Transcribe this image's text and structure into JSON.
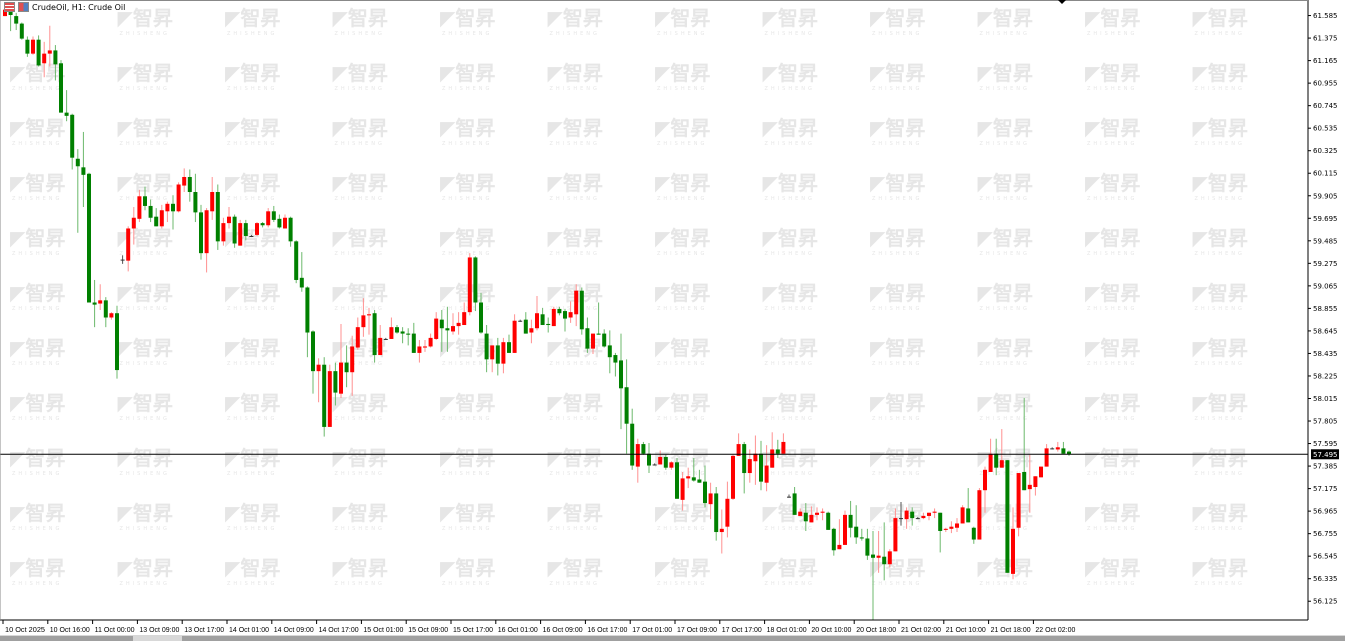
{
  "header": {
    "symbol_title": "CrudeOil, H1:  Crude Oil",
    "icons": [
      "bars-list-icon",
      "chart-type-icon"
    ]
  },
  "watermark": {
    "logo_text": "智昇",
    "sub_text": "ZHISHENG",
    "color": "#e6e6e6"
  },
  "current_price": {
    "label": "57.495",
    "value": 57.495
  },
  "colors": {
    "bull": "#ff0000",
    "bear": "#008000",
    "bull_wick": "#ff9090",
    "bear_wick": "#6cb86c",
    "price_line": "#000000",
    "axis": "#000000"
  },
  "chart_data": {
    "type": "candlestick",
    "title": "",
    "symbol": "CrudeOil",
    "timeframe": "H1",
    "ylim": [
      55.95,
      61.73
    ],
    "grid": false,
    "y_ticks": [
      "61.585",
      "61.375",
      "61.165",
      "60.955",
      "60.745",
      "60.535",
      "60.325",
      "60.115",
      "59.905",
      "59.695",
      "59.485",
      "59.275",
      "59.065",
      "58.855",
      "58.645",
      "58.435",
      "58.225",
      "58.015",
      "57.805",
      "57.595",
      "57.385",
      "57.175",
      "56.965",
      "56.755",
      "56.545",
      "56.335",
      "56.125"
    ],
    "x_labels": [
      "10 Oct 2025",
      "10 Oct 16:00",
      "11 Oct 00:00",
      "13 Oct 09:00",
      "13 Oct 17:00",
      "14 Oct 01:00",
      "14 Oct 09:00",
      "14 Oct 17:00",
      "15 Oct 01:00",
      "15 Oct 09:00",
      "15 Oct 17:00",
      "16 Oct 01:00",
      "16 Oct 09:00",
      "16 Oct 17:00",
      "17 Oct 01:00",
      "17 Oct 09:00",
      "17 Oct 17:00",
      "18 Oct 01:00",
      "20 Oct 10:00",
      "20 Oct 18:00",
      "21 Oct 02:00",
      "21 Oct 10:00",
      "21 Oct 18:00",
      "22 Oct 02:00"
    ],
    "ohlc_fields": [
      "open",
      "high",
      "low",
      "close"
    ],
    "candles": [
      [
        61.58,
        61.64,
        61.58,
        61.64
      ],
      [
        61.63,
        61.64,
        61.44,
        61.59
      ],
      [
        61.58,
        61.61,
        61.45,
        61.51
      ],
      [
        61.51,
        61.52,
        61.36,
        61.37
      ],
      [
        61.36,
        61.39,
        61.2,
        61.23
      ],
      [
        61.23,
        61.39,
        61.22,
        61.36
      ],
      [
        61.36,
        61.4,
        61.11,
        61.12
      ],
      [
        61.14,
        61.34,
        61.01,
        61.23
      ],
      [
        61.23,
        61.49,
        61.11,
        61.26
      ],
      [
        61.26,
        61.31,
        60.98,
        61.13
      ],
      [
        61.14,
        61.17,
        60.68,
        60.68
      ],
      [
        60.68,
        60.89,
        60.6,
        60.65
      ],
      [
        60.66,
        60.67,
        60.15,
        60.26
      ],
      [
        60.25,
        60.34,
        59.56,
        60.18
      ],
      [
        60.17,
        60.5,
        59.8,
        60.1
      ],
      [
        60.11,
        60.12,
        58.91,
        58.91
      ],
      [
        58.91,
        59.12,
        58.68,
        58.89
      ],
      [
        58.9,
        59.08,
        58.84,
        58.93
      ],
      [
        58.93,
        58.96,
        58.68,
        58.77
      ],
      [
        58.77,
        58.82,
        58.75,
        58.81
      ],
      [
        58.81,
        58.88,
        58.2,
        58.28
      ],
      [
        59.31,
        59.35,
        59.27,
        59.31
      ],
      [
        59.3,
        59.62,
        59.2,
        59.6
      ],
      [
        59.6,
        59.8,
        59.45,
        59.7
      ],
      [
        59.69,
        59.96,
        59.66,
        59.9
      ],
      [
        59.9,
        59.99,
        59.77,
        59.81
      ],
      [
        59.81,
        59.87,
        59.66,
        59.7
      ],
      [
        59.71,
        59.79,
        59.62,
        59.62
      ],
      [
        59.62,
        59.82,
        59.6,
        59.77
      ],
      [
        59.76,
        59.85,
        59.66,
        59.83
      ],
      [
        59.83,
        59.91,
        59.59,
        59.76
      ],
      [
        59.76,
        60.03,
        59.75,
        60.01
      ],
      [
        60.0,
        60.16,
        59.94,
        60.08
      ],
      [
        60.08,
        60.15,
        59.85,
        59.94
      ],
      [
        59.94,
        60.11,
        59.66,
        59.75
      ],
      [
        59.75,
        59.82,
        59.31,
        59.37
      ],
      [
        59.37,
        59.79,
        59.19,
        59.77
      ],
      [
        59.76,
        60.08,
        59.68,
        59.94
      ],
      [
        59.94,
        60.01,
        59.4,
        59.48
      ],
      [
        59.48,
        59.7,
        59.44,
        59.65
      ],
      [
        59.65,
        59.8,
        59.6,
        59.71
      ],
      [
        59.71,
        59.73,
        59.42,
        59.46
      ],
      [
        59.44,
        59.68,
        59.44,
        59.65
      ],
      [
        59.65,
        59.68,
        59.49,
        59.53
      ],
      [
        59.53,
        59.54,
        59.52,
        59.53
      ],
      [
        59.54,
        59.66,
        59.53,
        59.65
      ],
      [
        59.65,
        59.66,
        59.61,
        59.63
      ],
      [
        59.63,
        59.79,
        59.61,
        59.76
      ],
      [
        59.76,
        59.81,
        59.66,
        59.68
      ],
      [
        59.69,
        59.73,
        59.6,
        59.61
      ],
      [
        59.6,
        59.73,
        59.6,
        59.7
      ],
      [
        59.7,
        59.71,
        59.43,
        59.48
      ],
      [
        59.48,
        59.49,
        59.09,
        59.12
      ],
      [
        59.14,
        59.38,
        59.01,
        59.05
      ],
      [
        59.05,
        59.06,
        58.4,
        58.63
      ],
      [
        58.64,
        58.65,
        58.06,
        58.27
      ],
      [
        58.27,
        58.39,
        57.98,
        58.33
      ],
      [
        58.33,
        58.4,
        57.66,
        57.75
      ],
      [
        57.75,
        58.33,
        57.75,
        58.27
      ],
      [
        58.27,
        58.35,
        57.95,
        58.07
      ],
      [
        58.06,
        58.71,
        58.02,
        58.35
      ],
      [
        58.35,
        58.51,
        58.12,
        58.26
      ],
      [
        58.26,
        58.6,
        58.04,
        58.5
      ],
      [
        58.49,
        58.77,
        58.47,
        58.68
      ],
      [
        58.68,
        58.95,
        58.59,
        58.79
      ],
      [
        58.79,
        58.86,
        58.61,
        58.8
      ],
      [
        58.81,
        58.84,
        58.35,
        58.42
      ],
      [
        58.42,
        58.7,
        58.42,
        58.58
      ],
      [
        58.57,
        58.58,
        58.56,
        58.57
      ],
      [
        58.57,
        58.77,
        58.57,
        58.68
      ],
      [
        58.68,
        58.7,
        58.62,
        58.63
      ],
      [
        58.64,
        58.68,
        58.53,
        58.62
      ],
      [
        58.62,
        58.67,
        58.51,
        58.61
      ],
      [
        58.62,
        58.72,
        58.44,
        58.44
      ],
      [
        58.44,
        58.56,
        58.35,
        58.5
      ],
      [
        58.49,
        58.56,
        58.45,
        58.5
      ],
      [
        58.5,
        58.62,
        58.49,
        58.58
      ],
      [
        58.57,
        58.82,
        58.56,
        58.76
      ],
      [
        58.75,
        58.84,
        58.45,
        58.67
      ],
      [
        58.67,
        58.87,
        58.45,
        58.65
      ],
      [
        58.64,
        58.81,
        58.61,
        58.69
      ],
      [
        58.69,
        58.82,
        58.61,
        58.72
      ],
      [
        58.7,
        58.91,
        58.7,
        58.82
      ],
      [
        58.82,
        59.37,
        58.79,
        59.33
      ],
      [
        59.33,
        59.34,
        58.83,
        58.91
      ],
      [
        58.91,
        59.0,
        58.62,
        58.63
      ],
      [
        58.62,
        58.7,
        58.26,
        58.38
      ],
      [
        58.38,
        58.51,
        58.26,
        58.51
      ],
      [
        58.51,
        58.58,
        58.23,
        58.34
      ],
      [
        58.34,
        58.58,
        58.25,
        58.54
      ],
      [
        58.54,
        58.61,
        58.44,
        58.44
      ],
      [
        58.44,
        58.8,
        58.44,
        58.74
      ],
      [
        58.74,
        58.75,
        58.73,
        58.74
      ],
      [
        58.75,
        58.82,
        58.62,
        58.62
      ],
      [
        58.63,
        58.75,
        58.53,
        58.67
      ],
      [
        58.67,
        58.97,
        58.65,
        58.81
      ],
      [
        58.8,
        58.86,
        58.7,
        58.7
      ],
      [
        58.71,
        58.77,
        58.63,
        58.7
      ],
      [
        58.69,
        58.87,
        58.69,
        58.85
      ],
      [
        58.85,
        58.87,
        58.79,
        58.81
      ],
      [
        58.83,
        58.85,
        58.64,
        58.76
      ],
      [
        58.77,
        58.92,
        58.72,
        58.82
      ],
      [
        58.8,
        59.08,
        58.69,
        59.02
      ],
      [
        59.02,
        59.05,
        58.61,
        58.66
      ],
      [
        58.67,
        58.77,
        58.44,
        58.48
      ],
      [
        58.48,
        58.62,
        58.43,
        58.62
      ],
      [
        58.62,
        58.91,
        58.61,
        58.61
      ],
      [
        58.62,
        58.66,
        58.49,
        58.5
      ],
      [
        58.51,
        58.65,
        58.25,
        58.4
      ],
      [
        58.42,
        58.44,
        58.22,
        58.35
      ],
      [
        58.37,
        58.62,
        57.73,
        58.11
      ],
      [
        58.12,
        58.38,
        57.5,
        57.78
      ],
      [
        57.78,
        57.92,
        57.35,
        57.39
      ],
      [
        57.38,
        57.64,
        57.23,
        57.59
      ],
      [
        57.59,
        57.61,
        57.49,
        57.5
      ],
      [
        57.5,
        57.6,
        57.32,
        57.39
      ],
      [
        57.4,
        57.41,
        57.39,
        57.4
      ],
      [
        57.4,
        57.53,
        57.4,
        57.47
      ],
      [
        57.47,
        57.49,
        57.35,
        57.37
      ],
      [
        57.37,
        57.43,
        57.35,
        57.42
      ],
      [
        57.42,
        57.46,
        57.08,
        57.08
      ],
      [
        57.07,
        57.33,
        56.97,
        57.27
      ],
      [
        57.27,
        57.37,
        57.18,
        57.29
      ],
      [
        57.28,
        57.46,
        57.24,
        57.25
      ],
      [
        57.26,
        57.35,
        57.23,
        57.23
      ],
      [
        57.24,
        57.39,
        57.0,
        57.04
      ],
      [
        57.03,
        57.23,
        56.89,
        57.13
      ],
      [
        57.13,
        57.19,
        56.69,
        56.77
      ],
      [
        56.77,
        56.98,
        56.57,
        56.8
      ],
      [
        56.82,
        57.24,
        56.72,
        57.08
      ],
      [
        57.08,
        57.49,
        57.07,
        57.48
      ],
      [
        57.48,
        57.69,
        57.48,
        57.59
      ],
      [
        57.59,
        57.61,
        57.13,
        57.32
      ],
      [
        57.32,
        57.54,
        57.23,
        57.45
      ],
      [
        57.43,
        57.67,
        57.21,
        57.5
      ],
      [
        57.5,
        57.62,
        57.16,
        57.24
      ],
      [
        57.23,
        57.58,
        57.15,
        57.39
      ],
      [
        57.37,
        57.7,
        57.37,
        57.54
      ],
      [
        57.54,
        57.63,
        57.46,
        57.5
      ],
      [
        57.5,
        57.69,
        57.5,
        57.61
      ],
      [
        57.1,
        57.12,
        57.09,
        57.1
      ],
      [
        57.13,
        57.19,
        56.93,
        56.93
      ],
      [
        56.92,
        56.99,
        56.92,
        56.96
      ],
      [
        56.95,
        57.04,
        56.78,
        56.87
      ],
      [
        56.86,
        57.01,
        56.86,
        56.93
      ],
      [
        56.93,
        57.0,
        56.88,
        56.95
      ],
      [
        56.95,
        56.99,
        56.88,
        56.96
      ],
      [
        56.95,
        56.96,
        56.79,
        56.79
      ],
      [
        56.8,
        56.81,
        56.55,
        56.6
      ],
      [
        56.61,
        56.89,
        56.61,
        56.65
      ],
      [
        56.65,
        56.97,
        56.65,
        56.93
      ],
      [
        56.93,
        57.06,
        56.72,
        56.81
      ],
      [
        56.82,
        57.02,
        56.66,
        56.72
      ],
      [
        56.72,
        56.8,
        56.69,
        56.71
      ],
      [
        56.71,
        56.8,
        56.51,
        56.55
      ],
      [
        56.56,
        56.78,
        55.95,
        56.53
      ],
      [
        56.53,
        56.78,
        56.39,
        56.55
      ],
      [
        56.54,
        56.86,
        56.32,
        56.47
      ],
      [
        56.47,
        56.61,
        56.44,
        56.59
      ],
      [
        56.59,
        56.99,
        56.59,
        56.9
      ],
      [
        56.9,
        57.05,
        56.83,
        56.9
      ],
      [
        56.89,
        57.0,
        56.8,
        56.97
      ],
      [
        56.96,
        57.0,
        56.83,
        56.9
      ],
      [
        56.9,
        56.91,
        56.89,
        56.9
      ],
      [
        56.9,
        56.95,
        56.89,
        56.92
      ],
      [
        56.92,
        56.95,
        56.88,
        56.95
      ],
      [
        56.95,
        56.99,
        56.9,
        56.96
      ],
      [
        56.95,
        56.95,
        56.58,
        56.78
      ],
      [
        56.79,
        56.81,
        56.77,
        56.8
      ],
      [
        56.8,
        56.87,
        56.76,
        56.82
      ],
      [
        56.81,
        56.9,
        56.77,
        56.85
      ],
      [
        56.85,
        57.02,
        56.85,
        57.0
      ],
      [
        56.99,
        57.18,
        56.86,
        56.86
      ],
      [
        56.81,
        56.82,
        56.66,
        56.7
      ],
      [
        56.7,
        57.18,
        56.7,
        57.16
      ],
      [
        57.16,
        57.38,
        56.95,
        57.35
      ],
      [
        57.33,
        57.64,
        57.33,
        57.5
      ],
      [
        57.5,
        57.64,
        57.3,
        57.37
      ],
      [
        57.37,
        57.73,
        57.37,
        57.44
      ],
      [
        57.44,
        57.44,
        56.39,
        56.39
      ],
      [
        56.38,
        57.0,
        56.33,
        56.8
      ],
      [
        56.81,
        57.32,
        56.73,
        57.32
      ],
      [
        57.33,
        58.02,
        57.16,
        57.16
      ],
      [
        57.17,
        57.49,
        56.95,
        57.21
      ],
      [
        57.19,
        57.29,
        57.11,
        57.29
      ],
      [
        57.28,
        57.38,
        57.28,
        57.38
      ],
      [
        57.38,
        57.59,
        57.38,
        57.55
      ],
      [
        57.55,
        57.56,
        57.54,
        57.55
      ],
      [
        57.54,
        57.61,
        57.52,
        57.56
      ],
      [
        57.55,
        57.61,
        57.5,
        57.5
      ],
      [
        57.52,
        57.53,
        57.48,
        57.495
      ]
    ]
  }
}
